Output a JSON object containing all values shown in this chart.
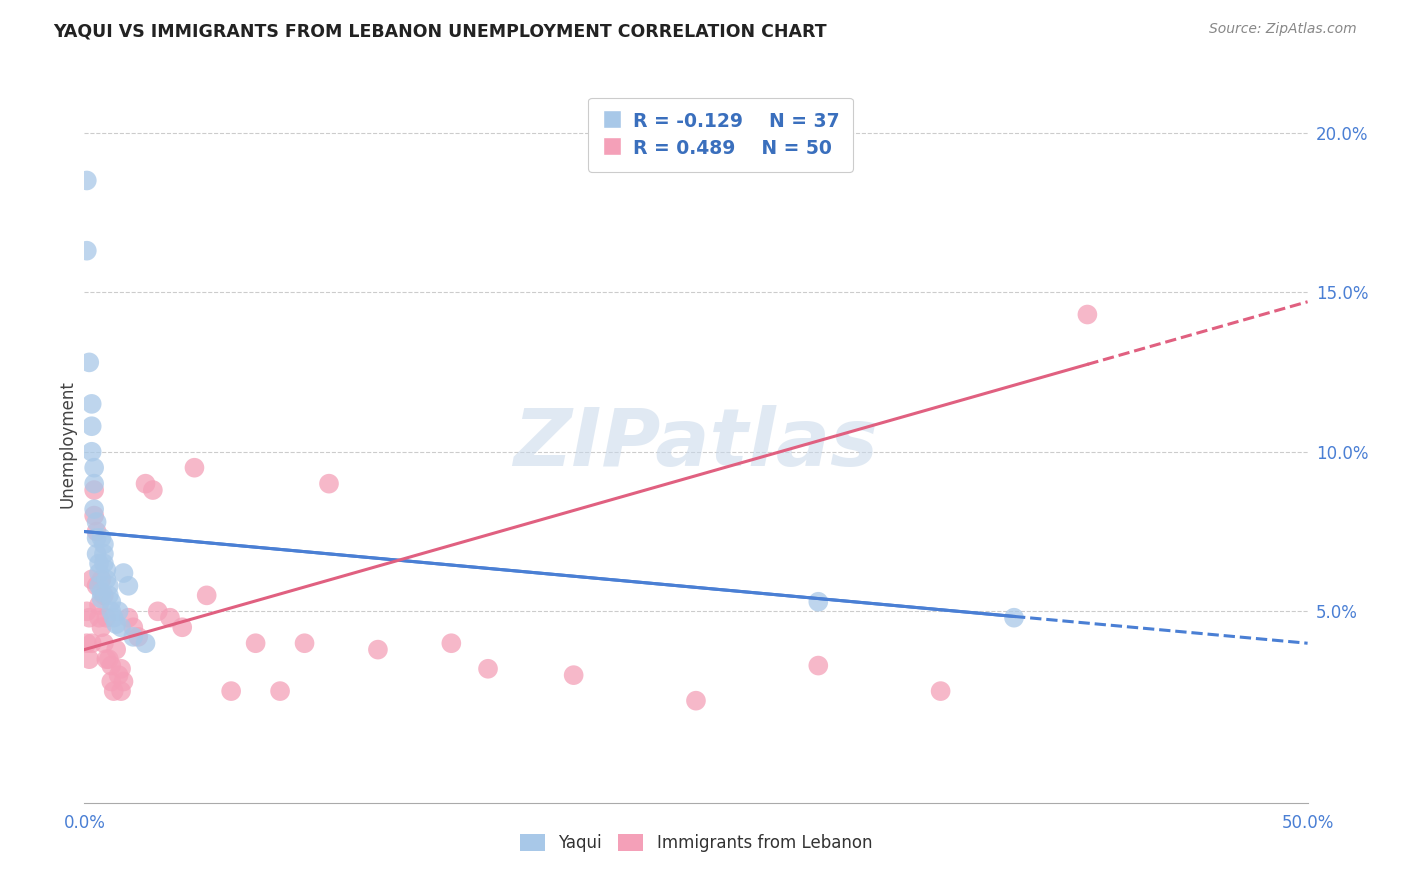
{
  "title": "YAQUI VS IMMIGRANTS FROM LEBANON UNEMPLOYMENT CORRELATION CHART",
  "source": "Source: ZipAtlas.com",
  "ylabel": "Unemployment",
  "yaqui_R": -0.129,
  "yaqui_N": 37,
  "lebanon_R": 0.489,
  "lebanon_N": 50,
  "yaqui_color": "#a8c8e8",
  "lebanon_color": "#f4a0b8",
  "yaqui_line_color": "#4a7fd4",
  "lebanon_line_color": "#e06080",
  "watermark": "ZIPatlas",
  "xmin": 0.0,
  "xmax": 0.5,
  "ymin": -0.01,
  "ymax": 0.215,
  "ytick_vals": [
    0.05,
    0.1,
    0.15,
    0.2
  ],
  "ytick_labels": [
    "5.0%",
    "10.0%",
    "15.0%",
    "20.0%"
  ],
  "yaqui_x": [
    0.001,
    0.001,
    0.002,
    0.003,
    0.003,
    0.003,
    0.004,
    0.004,
    0.004,
    0.005,
    0.005,
    0.005,
    0.006,
    0.006,
    0.006,
    0.007,
    0.007,
    0.007,
    0.008,
    0.008,
    0.008,
    0.009,
    0.009,
    0.01,
    0.01,
    0.011,
    0.011,
    0.012,
    0.013,
    0.014,
    0.015,
    0.016,
    0.018,
    0.02,
    0.025,
    0.3,
    0.38
  ],
  "yaqui_y": [
    0.185,
    0.163,
    0.128,
    0.115,
    0.108,
    0.1,
    0.095,
    0.09,
    0.082,
    0.078,
    0.073,
    0.068,
    0.065,
    0.062,
    0.058,
    0.056,
    0.054,
    0.073,
    0.071,
    0.068,
    0.065,
    0.063,
    0.06,
    0.058,
    0.055,
    0.053,
    0.05,
    0.048,
    0.046,
    0.05,
    0.045,
    0.062,
    0.058,
    0.042,
    0.04,
    0.053,
    0.048
  ],
  "lebanon_x": [
    0.001,
    0.001,
    0.002,
    0.002,
    0.003,
    0.003,
    0.004,
    0.004,
    0.005,
    0.005,
    0.006,
    0.006,
    0.007,
    0.007,
    0.008,
    0.008,
    0.009,
    0.009,
    0.01,
    0.011,
    0.011,
    0.012,
    0.013,
    0.014,
    0.015,
    0.015,
    0.016,
    0.018,
    0.02,
    0.022,
    0.025,
    0.028,
    0.03,
    0.035,
    0.04,
    0.045,
    0.05,
    0.06,
    0.07,
    0.08,
    0.09,
    0.1,
    0.12,
    0.15,
    0.165,
    0.2,
    0.25,
    0.3,
    0.35,
    0.41
  ],
  "lebanon_y": [
    0.05,
    0.04,
    0.048,
    0.035,
    0.06,
    0.04,
    0.088,
    0.08,
    0.075,
    0.058,
    0.052,
    0.048,
    0.06,
    0.045,
    0.055,
    0.04,
    0.048,
    0.035,
    0.035,
    0.033,
    0.028,
    0.025,
    0.038,
    0.03,
    0.032,
    0.025,
    0.028,
    0.048,
    0.045,
    0.042,
    0.09,
    0.088,
    0.05,
    0.048,
    0.045,
    0.095,
    0.055,
    0.025,
    0.04,
    0.025,
    0.04,
    0.09,
    0.038,
    0.04,
    0.032,
    0.03,
    0.022,
    0.033,
    0.025,
    0.143
  ],
  "blue_line_x0": 0.0,
  "blue_line_y0": 0.075,
  "blue_line_x1": 0.5,
  "blue_line_y1": 0.04,
  "blue_solid_xend": 0.38,
  "pink_line_x0": 0.0,
  "pink_line_y0": 0.038,
  "pink_line_x1": 0.5,
  "pink_line_y1": 0.147,
  "pink_solid_xend": 0.41
}
